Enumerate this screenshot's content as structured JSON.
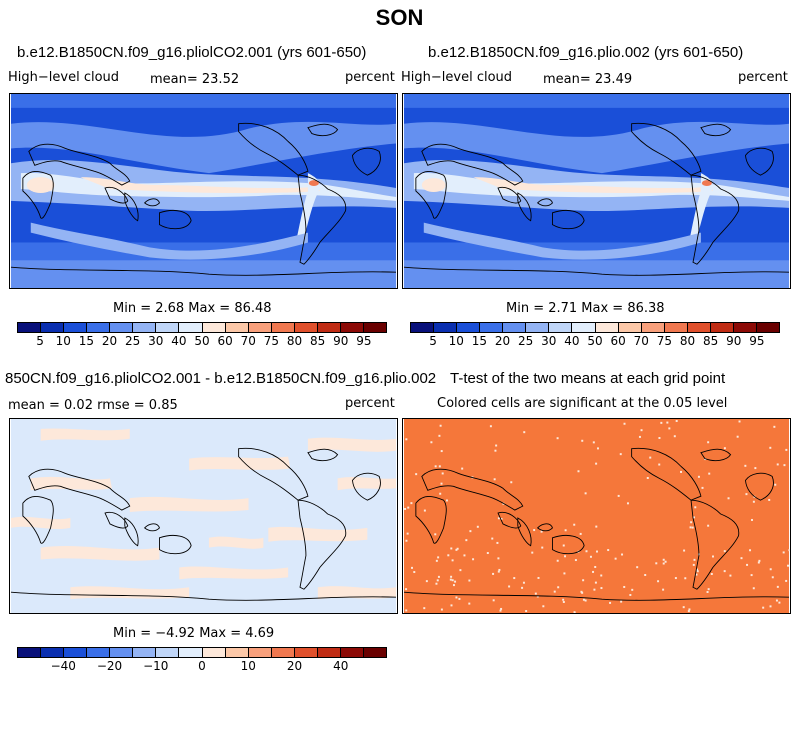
{
  "figure_title": "SON",
  "panels": {
    "top_left": {
      "title": "b.e12.B1850CN.f09_g16.pliolCO2.001 (yrs 601-650)",
      "left_label": "High−level cloud",
      "center_label": "mean=  23.52",
      "right_label": "percent",
      "minmax": "Min =    2.68 Max =   86.48"
    },
    "top_right": {
      "title": "b.e12.B1850CN.f09_g16.plio.002 (yrs 601-650)",
      "left_label": "High−level cloud",
      "center_label": "mean=  23.49",
      "right_label": "percent",
      "minmax": "Min =    2.71 Max =   86.38"
    },
    "bottom_left": {
      "title": "850CN.f09_g16.pliolCO2.001 - b.e12.B1850CN.f09_g16.plio.002",
      "left_label": "mean =    0.02      rmse =    0.85",
      "right_label": "percent",
      "minmax": "Min =  −4.92 Max =    4.69"
    },
    "bottom_right": {
      "title": "T-test of the two means at each grid point",
      "subtitle": "Colored cells are significant at the 0.05 level"
    }
  },
  "colorbar_abs": {
    "labels": [
      "5",
      "10",
      "15",
      "20",
      "25",
      "30",
      "40",
      "50",
      "60",
      "70",
      "75",
      "80",
      "85",
      "90",
      "95"
    ],
    "colors": [
      "#08107a",
      "#0a2fb0",
      "#1a4fd8",
      "#3a6fe8",
      "#6490f0",
      "#94b4f4",
      "#c0d6f8",
      "#e2eefc",
      "#fde8da",
      "#fcc8a8",
      "#f8a07c",
      "#f07850",
      "#e0502c",
      "#c02c14",
      "#8c0a06",
      "#6a0000"
    ]
  },
  "colorbar_diff": {
    "labels": [
      "−40",
      "−20",
      "−10",
      "0",
      "10",
      "20",
      "40"
    ],
    "colors": [
      "#08107a",
      "#0a2fb0",
      "#1a4fd8",
      "#3a6fe8",
      "#6490f0",
      "#94b4f4",
      "#c0d6f8",
      "#e2eefc",
      "#fde8da",
      "#fcc8a8",
      "#f8a07c",
      "#f07850",
      "#e0502c",
      "#c02c14",
      "#8c0a06",
      "#6a0000"
    ]
  },
  "map_colors": {
    "ocean_low": "#1a4fd8",
    "ttest_fill": "#f5773a",
    "diff_bg": "#dbe9fb",
    "diff_pos": "#fde8da"
  }
}
